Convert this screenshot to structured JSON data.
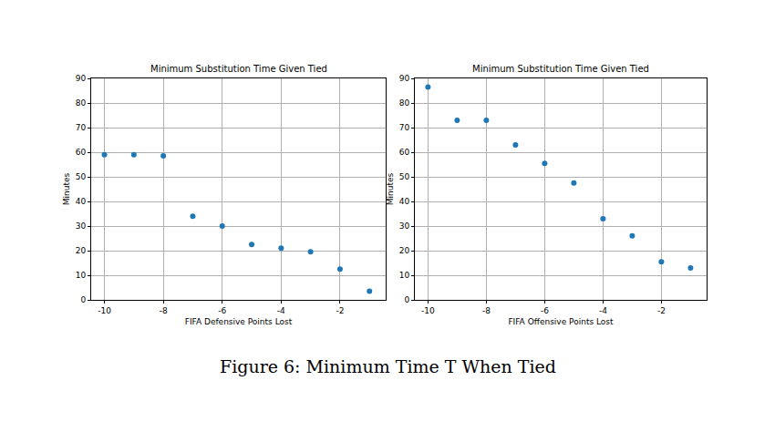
{
  "chart_data": [
    {
      "type": "scatter",
      "title": "Minimum Substitution Time Given Tied",
      "xlabel": "FIFA Defensive Points Lost",
      "ylabel": "Minutes",
      "x": [
        -10,
        -9,
        -8,
        -7,
        -6,
        -5,
        -4,
        -3,
        -2,
        -1
      ],
      "values": [
        59,
        59,
        58.5,
        34,
        30,
        22.5,
        21,
        19.5,
        12.5,
        3.5
      ],
      "color": "#1f77b4",
      "marker": "circle",
      "xlim": [
        -10.45,
        -0.45
      ],
      "ylim": [
        0,
        90
      ],
      "xticks": [
        -10,
        -8,
        -6,
        -4,
        -2
      ],
      "yticks": [
        0,
        10,
        20,
        30,
        40,
        50,
        60,
        70,
        80,
        90
      ],
      "grid": true
    },
    {
      "type": "scatter",
      "title": "Minimum Substitution Time Given Tied",
      "xlabel": "FIFA Offensive Points Lost",
      "ylabel": "Minutes",
      "x": [
        -10,
        -9,
        -8,
        -7,
        -6,
        -5,
        -4,
        -3,
        -2,
        -1
      ],
      "values": [
        86.5,
        73,
        73,
        63,
        55.5,
        47.5,
        33,
        26,
        15.5,
        13
      ],
      "color": "#1f77b4",
      "marker": "circle",
      "xlim": [
        -10.45,
        -0.45
      ],
      "ylim": [
        0,
        90
      ],
      "xticks": [
        -10,
        -8,
        -6,
        -4,
        -2
      ],
      "yticks": [
        0,
        10,
        20,
        30,
        40,
        50,
        60,
        70,
        80,
        90
      ],
      "grid": true
    }
  ],
  "caption": "Figure 6: Minimum Time T When Tied"
}
